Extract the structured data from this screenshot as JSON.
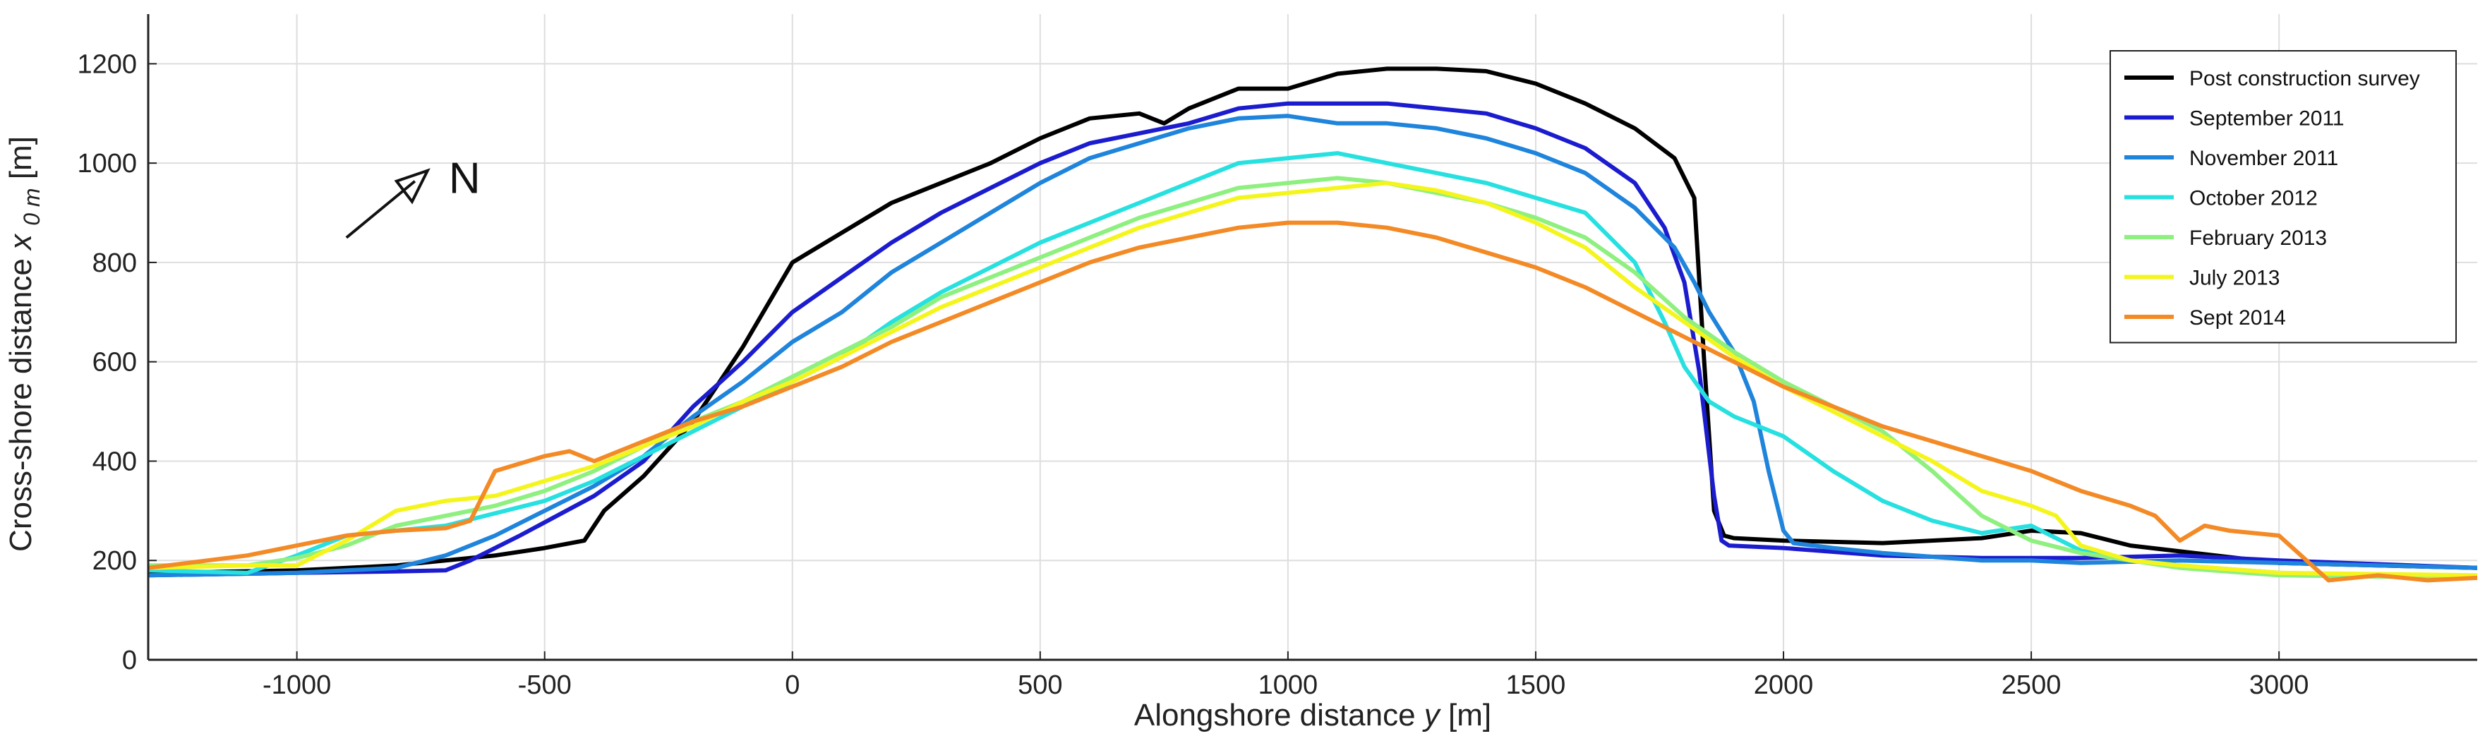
{
  "chart_data": {
    "type": "line",
    "title": "",
    "xlabel": "Alongshore distance",
    "xlabel_var": "y",
    "xlabel_unit": "[m]",
    "ylabel": "Cross-shore distance",
    "ylabel_var": "x",
    "ylabel_sub": "0 m",
    "ylabel_unit": "[m]",
    "xlim": [
      -1300,
      3400
    ],
    "ylim": [
      0,
      1300
    ],
    "xticks": [
      -1000,
      -500,
      0,
      500,
      1000,
      1500,
      2000,
      2500,
      3000
    ],
    "yticks": [
      0,
      200,
      400,
      600,
      800,
      1000,
      1200
    ],
    "grid": true,
    "legend_position": "top-right",
    "annotation": {
      "text": "N",
      "type": "north-arrow",
      "x": -900,
      "y": 850
    },
    "series": [
      {
        "name": "Post construction survey",
        "color": "#000000",
        "points": [
          [
            -1300,
            175
          ],
          [
            -1000,
            180
          ],
          [
            -800,
            190
          ],
          [
            -600,
            210
          ],
          [
            -500,
            225
          ],
          [
            -420,
            240
          ],
          [
            -380,
            300
          ],
          [
            -300,
            370
          ],
          [
            -200,
            480
          ],
          [
            -100,
            630
          ],
          [
            0,
            800
          ],
          [
            100,
            860
          ],
          [
            200,
            920
          ],
          [
            300,
            960
          ],
          [
            400,
            1000
          ],
          [
            500,
            1050
          ],
          [
            600,
            1090
          ],
          [
            700,
            1100
          ],
          [
            750,
            1080
          ],
          [
            800,
            1110
          ],
          [
            900,
            1150
          ],
          [
            1000,
            1150
          ],
          [
            1100,
            1180
          ],
          [
            1200,
            1190
          ],
          [
            1300,
            1190
          ],
          [
            1400,
            1185
          ],
          [
            1500,
            1160
          ],
          [
            1600,
            1120
          ],
          [
            1700,
            1070
          ],
          [
            1780,
            1010
          ],
          [
            1820,
            930
          ],
          [
            1840,
            600
          ],
          [
            1860,
            300
          ],
          [
            1880,
            250
          ],
          [
            1900,
            245
          ],
          [
            2000,
            240
          ],
          [
            2200,
            235
          ],
          [
            2400,
            245
          ],
          [
            2500,
            260
          ],
          [
            2600,
            255
          ],
          [
            2700,
            230
          ],
          [
            3000,
            195
          ],
          [
            3400,
            185
          ]
        ]
      },
      {
        "name": "September 2011",
        "color": "#1c1ccf",
        "points": [
          [
            -1300,
            170
          ],
          [
            -1000,
            175
          ],
          [
            -800,
            178
          ],
          [
            -700,
            180
          ],
          [
            -650,
            200
          ],
          [
            -550,
            250
          ],
          [
            -400,
            330
          ],
          [
            -300,
            400
          ],
          [
            -200,
            510
          ],
          [
            -100,
            600
          ],
          [
            0,
            700
          ],
          [
            100,
            770
          ],
          [
            200,
            840
          ],
          [
            300,
            900
          ],
          [
            400,
            950
          ],
          [
            500,
            1000
          ],
          [
            600,
            1040
          ],
          [
            700,
            1060
          ],
          [
            800,
            1080
          ],
          [
            900,
            1110
          ],
          [
            1000,
            1120
          ],
          [
            1100,
            1120
          ],
          [
            1200,
            1120
          ],
          [
            1300,
            1110
          ],
          [
            1400,
            1100
          ],
          [
            1500,
            1070
          ],
          [
            1600,
            1030
          ],
          [
            1700,
            960
          ],
          [
            1760,
            870
          ],
          [
            1800,
            760
          ],
          [
            1830,
            580
          ],
          [
            1860,
            330
          ],
          [
            1875,
            240
          ],
          [
            1890,
            230
          ],
          [
            2000,
            225
          ],
          [
            2200,
            210
          ],
          [
            2400,
            205
          ],
          [
            2500,
            205
          ],
          [
            2600,
            205
          ],
          [
            2800,
            210
          ],
          [
            3000,
            200
          ],
          [
            3400,
            185
          ]
        ]
      },
      {
        "name": "November 2011",
        "color": "#1f84dc",
        "points": [
          [
            -1300,
            170
          ],
          [
            -1000,
            175
          ],
          [
            -800,
            185
          ],
          [
            -700,
            210
          ],
          [
            -600,
            250
          ],
          [
            -500,
            300
          ],
          [
            -400,
            350
          ],
          [
            -300,
            410
          ],
          [
            -200,
            490
          ],
          [
            -100,
            560
          ],
          [
            0,
            640
          ],
          [
            100,
            700
          ],
          [
            200,
            780
          ],
          [
            300,
            840
          ],
          [
            400,
            900
          ],
          [
            500,
            960
          ],
          [
            600,
            1010
          ],
          [
            700,
            1040
          ],
          [
            800,
            1070
          ],
          [
            900,
            1090
          ],
          [
            1000,
            1095
          ],
          [
            1100,
            1080
          ],
          [
            1200,
            1080
          ],
          [
            1300,
            1070
          ],
          [
            1400,
            1050
          ],
          [
            1500,
            1020
          ],
          [
            1600,
            980
          ],
          [
            1700,
            910
          ],
          [
            1780,
            830
          ],
          [
            1820,
            760
          ],
          [
            1850,
            700
          ],
          [
            1900,
            620
          ],
          [
            1940,
            520
          ],
          [
            1970,
            380
          ],
          [
            2000,
            260
          ],
          [
            2020,
            235
          ],
          [
            2100,
            225
          ],
          [
            2200,
            215
          ],
          [
            2400,
            200
          ],
          [
            2500,
            200
          ],
          [
            2600,
            195
          ],
          [
            2800,
            200
          ],
          [
            3000,
            195
          ],
          [
            3400,
            185
          ]
        ]
      },
      {
        "name": "October 2012",
        "color": "#27e0e0",
        "points": [
          [
            -1300,
            180
          ],
          [
            -1100,
            175
          ],
          [
            -1000,
            210
          ],
          [
            -900,
            250
          ],
          [
            -700,
            270
          ],
          [
            -500,
            320
          ],
          [
            -400,
            360
          ],
          [
            -300,
            410
          ],
          [
            -200,
            460
          ],
          [
            -100,
            510
          ],
          [
            0,
            560
          ],
          [
            100,
            610
          ],
          [
            200,
            680
          ],
          [
            300,
            740
          ],
          [
            400,
            790
          ],
          [
            500,
            840
          ],
          [
            600,
            880
          ],
          [
            700,
            920
          ],
          [
            800,
            960
          ],
          [
            900,
            1000
          ],
          [
            1000,
            1010
          ],
          [
            1100,
            1020
          ],
          [
            1200,
            1000
          ],
          [
            1300,
            980
          ],
          [
            1400,
            960
          ],
          [
            1500,
            930
          ],
          [
            1600,
            900
          ],
          [
            1700,
            800
          ],
          [
            1760,
            680
          ],
          [
            1800,
            590
          ],
          [
            1850,
            520
          ],
          [
            1900,
            490
          ],
          [
            2000,
            450
          ],
          [
            2100,
            380
          ],
          [
            2200,
            320
          ],
          [
            2300,
            280
          ],
          [
            2400,
            255
          ],
          [
            2500,
            270
          ],
          [
            2600,
            220
          ],
          [
            2700,
            200
          ],
          [
            2800,
            190
          ],
          [
            3000,
            175
          ],
          [
            3400,
            165
          ]
        ]
      },
      {
        "name": "February 2013",
        "color": "#8ef07e",
        "points": [
          [
            -1300,
            190
          ],
          [
            -1100,
            190
          ],
          [
            -1000,
            205
          ],
          [
            -900,
            230
          ],
          [
            -800,
            270
          ],
          [
            -700,
            290
          ],
          [
            -600,
            310
          ],
          [
            -500,
            340
          ],
          [
            -400,
            380
          ],
          [
            -300,
            430
          ],
          [
            -200,
            480
          ],
          [
            -100,
            520
          ],
          [
            0,
            570
          ],
          [
            100,
            620
          ],
          [
            200,
            670
          ],
          [
            300,
            730
          ],
          [
            400,
            770
          ],
          [
            500,
            810
          ],
          [
            600,
            850
          ],
          [
            700,
            890
          ],
          [
            800,
            920
          ],
          [
            900,
            950
          ],
          [
            1000,
            960
          ],
          [
            1100,
            970
          ],
          [
            1200,
            960
          ],
          [
            1300,
            940
          ],
          [
            1400,
            920
          ],
          [
            1500,
            890
          ],
          [
            1600,
            850
          ],
          [
            1700,
            780
          ],
          [
            1800,
            690
          ],
          [
            1900,
            620
          ],
          [
            2000,
            560
          ],
          [
            2100,
            510
          ],
          [
            2200,
            460
          ],
          [
            2300,
            380
          ],
          [
            2400,
            290
          ],
          [
            2500,
            240
          ],
          [
            2600,
            215
          ],
          [
            2700,
            200
          ],
          [
            2800,
            185
          ],
          [
            3000,
            170
          ],
          [
            3400,
            165
          ]
        ]
      },
      {
        "name": "July 2013",
        "color": "#f5f51e",
        "points": [
          [
            -1300,
            185
          ],
          [
            -1100,
            190
          ],
          [
            -1000,
            190
          ],
          [
            -900,
            240
          ],
          [
            -800,
            300
          ],
          [
            -700,
            320
          ],
          [
            -600,
            330
          ],
          [
            -500,
            360
          ],
          [
            -400,
            390
          ],
          [
            -300,
            430
          ],
          [
            -200,
            470
          ],
          [
            -100,
            520
          ],
          [
            0,
            560
          ],
          [
            100,
            610
          ],
          [
            200,
            660
          ],
          [
            300,
            710
          ],
          [
            400,
            750
          ],
          [
            500,
            790
          ],
          [
            600,
            830
          ],
          [
            700,
            870
          ],
          [
            800,
            900
          ],
          [
            900,
            930
          ],
          [
            1000,
            940
          ],
          [
            1100,
            950
          ],
          [
            1200,
            960
          ],
          [
            1300,
            945
          ],
          [
            1400,
            920
          ],
          [
            1500,
            880
          ],
          [
            1600,
            830
          ],
          [
            1700,
            750
          ],
          [
            1800,
            680
          ],
          [
            1900,
            610
          ],
          [
            2000,
            550
          ],
          [
            2100,
            500
          ],
          [
            2200,
            450
          ],
          [
            2300,
            400
          ],
          [
            2400,
            340
          ],
          [
            2500,
            310
          ],
          [
            2550,
            290
          ],
          [
            2600,
            230
          ],
          [
            2700,
            200
          ],
          [
            2800,
            190
          ],
          [
            3000,
            175
          ],
          [
            3400,
            170
          ]
        ]
      },
      {
        "name": "Sept 2014",
        "color": "#f38a25",
        "points": [
          [
            -1300,
            185
          ],
          [
            -1100,
            210
          ],
          [
            -1000,
            230
          ],
          [
            -900,
            250
          ],
          [
            -800,
            260
          ],
          [
            -700,
            265
          ],
          [
            -650,
            280
          ],
          [
            -600,
            380
          ],
          [
            -500,
            410
          ],
          [
            -450,
            420
          ],
          [
            -400,
            400
          ],
          [
            -300,
            440
          ],
          [
            -200,
            480
          ],
          [
            -100,
            510
          ],
          [
            0,
            550
          ],
          [
            100,
            590
          ],
          [
            200,
            640
          ],
          [
            300,
            680
          ],
          [
            400,
            720
          ],
          [
            500,
            760
          ],
          [
            600,
            800
          ],
          [
            700,
            830
          ],
          [
            800,
            850
          ],
          [
            900,
            870
          ],
          [
            1000,
            880
          ],
          [
            1100,
            880
          ],
          [
            1200,
            870
          ],
          [
            1300,
            850
          ],
          [
            1400,
            820
          ],
          [
            1500,
            790
          ],
          [
            1600,
            750
          ],
          [
            1700,
            700
          ],
          [
            1800,
            650
          ],
          [
            1900,
            600
          ],
          [
            2000,
            550
          ],
          [
            2100,
            510
          ],
          [
            2200,
            470
          ],
          [
            2300,
            440
          ],
          [
            2400,
            410
          ],
          [
            2500,
            380
          ],
          [
            2600,
            340
          ],
          [
            2700,
            310
          ],
          [
            2750,
            290
          ],
          [
            2800,
            240
          ],
          [
            2850,
            270
          ],
          [
            2900,
            260
          ],
          [
            3000,
            250
          ],
          [
            3100,
            160
          ],
          [
            3200,
            170
          ],
          [
            3300,
            160
          ],
          [
            3400,
            165
          ]
        ]
      }
    ]
  }
}
